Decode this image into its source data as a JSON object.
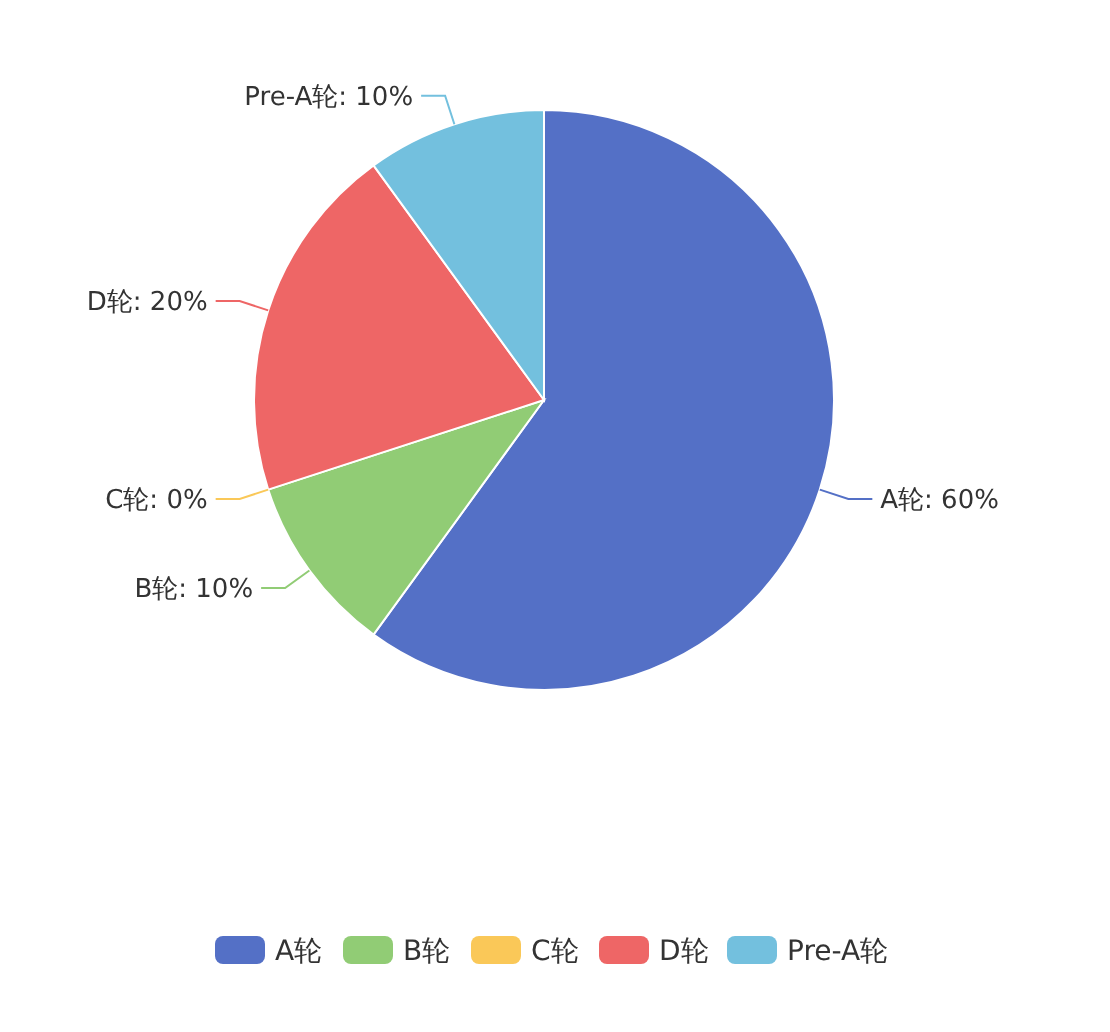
{
  "chart_data": {
    "type": "pie",
    "categories": [
      "A轮",
      "B轮",
      "C轮",
      "D轮",
      "Pre-A轮"
    ],
    "values": [
      60,
      10,
      0,
      20,
      10
    ],
    "value_labels": [
      "A轮: 60%",
      "B轮: 10%",
      "C轮: 0%",
      "D轮: 20%",
      "Pre-A轮: 10%"
    ],
    "colors": [
      "#5470c6",
      "#91cc75",
      "#fac858",
      "#ee6666",
      "#73c0de"
    ],
    "legend": "bottom"
  }
}
